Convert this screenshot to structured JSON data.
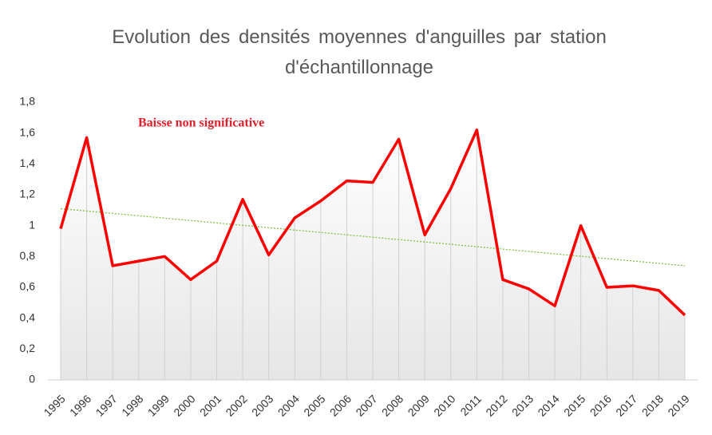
{
  "chart_data": {
    "type": "line",
    "title": "Evolution des densités moyennes d'anguilles par station d'échantillonnage",
    "annotation": "Baisse non significative",
    "categories": [
      "1995",
      "1996",
      "1997",
      "1998",
      "1999",
      "2000",
      "2001",
      "2002",
      "2003",
      "2004",
      "2005",
      "2006",
      "2007",
      "2008",
      "2009",
      "2010",
      "2011",
      "2012",
      "2013",
      "2014",
      "2015",
      "2016",
      "2017",
      "2018",
      "2019"
    ],
    "series": [
      {
        "color": "#ff0000",
        "values": [
          0.98,
          1.57,
          0.74,
          0.77,
          0.8,
          0.65,
          0.77,
          1.17,
          0.81,
          1.05,
          1.16,
          1.29,
          1.28,
          1.56,
          0.94,
          1.24,
          1.62,
          0.65,
          0.59,
          0.48,
          1.0,
          0.6,
          0.61,
          0.58,
          0.42
        ]
      }
    ],
    "trendline": {
      "color": "#7fc241",
      "start": 1.11,
      "end": 0.74
    },
    "ylim": [
      0,
      1.8
    ],
    "yticks": [
      0,
      {
        "value": 0.2,
        "label": "0,2"
      },
      {
        "value": 0.4,
        "label": "0,4"
      },
      {
        "value": 0.6,
        "label": "0,6"
      },
      {
        "value": 0.8,
        "label": "0,8"
      },
      1,
      {
        "value": 1.2,
        "label": "1,2"
      },
      {
        "value": 1.4,
        "label": "1,4"
      },
      {
        "value": 1.6,
        "label": "1,6"
      },
      {
        "value": 1.8,
        "label": "1,8"
      }
    ]
  }
}
